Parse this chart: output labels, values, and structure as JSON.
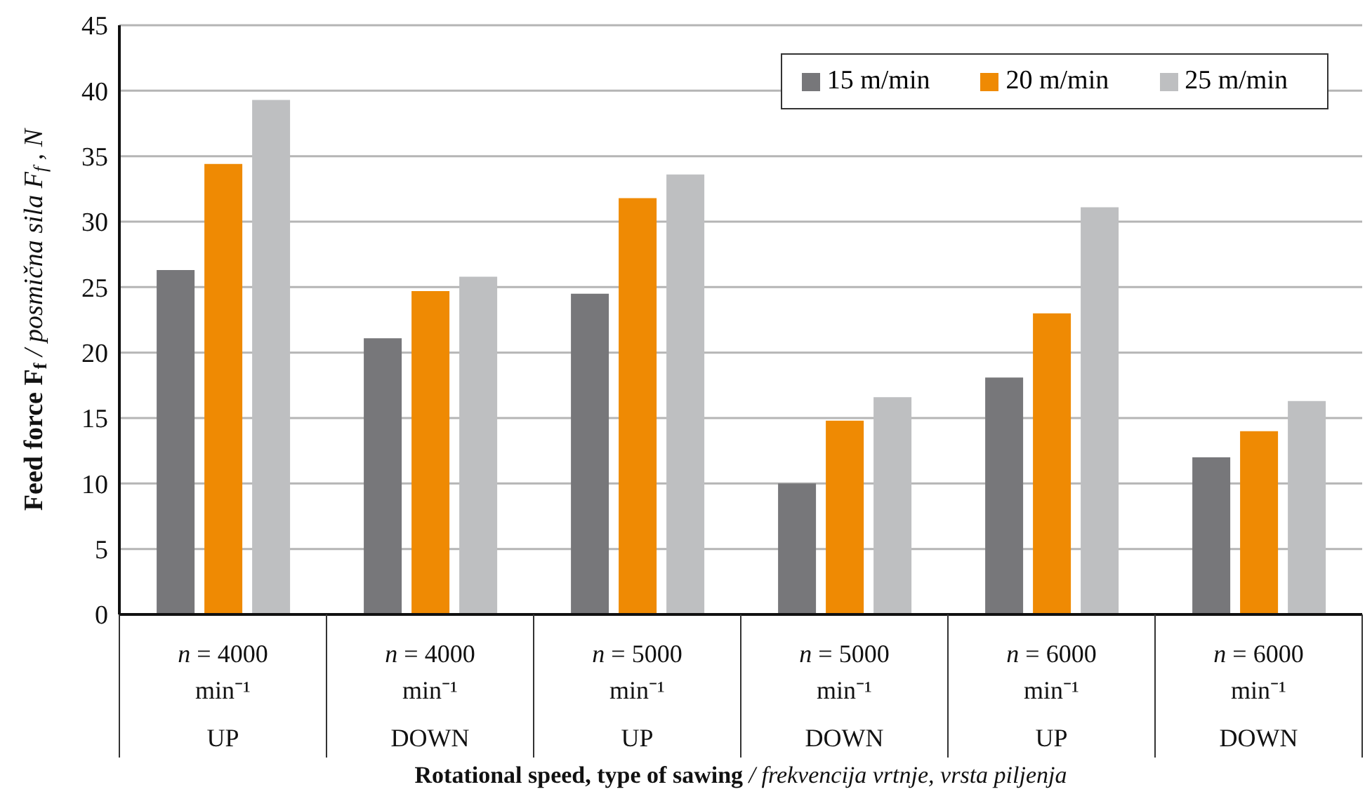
{
  "chart_data": {
    "type": "bar",
    "xlabel": "Rotational speed, type of sawing / frekvencija vrtnje, vrsta piljenja",
    "ylabel": "Feed force F$_{f}$ / posmična sila F$_{f}$, N",
    "categories": [
      "n = 4000\nmin⁻¹\nUP",
      "n = 4000\nmin⁻¹\nDOWN",
      "n = 5000\nmin⁻¹\nUP",
      "n = 5000\nmin⁻¹\nDOWN",
      "n = 6000\nmin⁻¹\nUP",
      "n = 6000\nmin⁻¹\nDOWN"
    ],
    "series": [
      {
        "name": "15 m/min",
        "color": "#77777a",
        "values": [
          26.3,
          21.1,
          24.5,
          10.0,
          18.1,
          12.0
        ]
      },
      {
        "name": "20 m/min",
        "color": "#ef8a03",
        "values": [
          34.4,
          24.7,
          31.8,
          14.8,
          23.0,
          14.0
        ]
      },
      {
        "name": "25 m/min",
        "color": "#bebfc1",
        "values": [
          39.3,
          25.8,
          33.6,
          16.6,
          31.1,
          16.3
        ]
      }
    ],
    "ylim": [
      0,
      45
    ],
    "yticks": [
      0,
      5,
      10,
      15,
      20,
      25,
      30,
      35,
      40,
      45
    ],
    "grid": "y",
    "legend": "top right"
  }
}
